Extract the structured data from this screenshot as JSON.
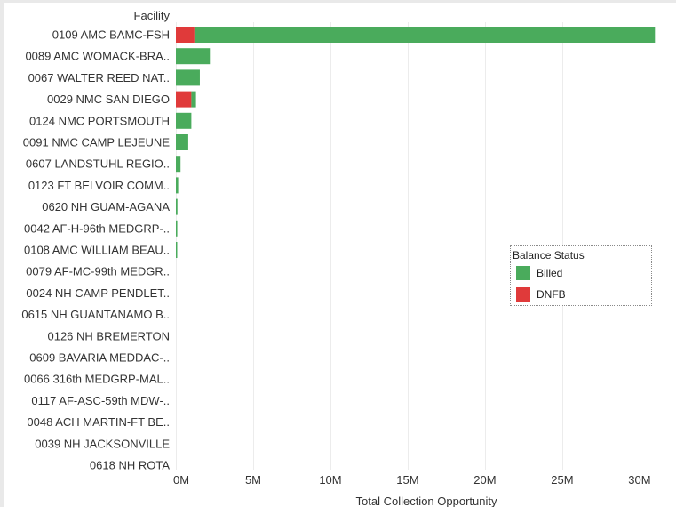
{
  "chart_data": {
    "type": "bar",
    "orientation": "horizontal",
    "stacked": true,
    "row_header": "Facility",
    "xlabel": "Total Collection Opportunity",
    "xlim": [
      0,
      31500000
    ],
    "x_ticks": [
      {
        "value": 0,
        "label": "0M"
      },
      {
        "value": 5000000,
        "label": "5M"
      },
      {
        "value": 10000000,
        "label": "10M"
      },
      {
        "value": 15000000,
        "label": "15M"
      },
      {
        "value": 20000000,
        "label": "20M"
      },
      {
        "value": 25000000,
        "label": "25M"
      },
      {
        "value": 30000000,
        "label": "30M"
      }
    ],
    "grid": true,
    "legend_position": "right",
    "categories": [
      "0109 AMC BAMC-FSH",
      "0089 AMC WOMACK-BRA..",
      "0067 WALTER REED NAT..",
      "0029 NMC SAN DIEGO",
      "0124 NMC PORTSMOUTH",
      "0091 NMC CAMP LEJEUNE",
      "0607 LANDSTUHL REGIO..",
      "0123 FT BELVOIR COMM..",
      "0620 NH GUAM-AGANA",
      "0042 AF-H-96th MEDGRP-..",
      "0108 AMC WILLIAM BEAU..",
      "0079 AF-MC-99th MEDGR..",
      "0024 NH CAMP PENDLET..",
      "0615 NH GUANTANAMO B..",
      "0126 NH BREMERTON",
      "0609 BAVARIA MEDDAC-..",
      "0066 316th MEDGRP-MAL..",
      "0117 AF-ASC-59th MDW-..",
      "0048 ACH MARTIN-FT BE..",
      "0039 NH JACKSONVILLE",
      "0618 NH ROTA"
    ],
    "series": [
      {
        "name": "DNFB",
        "color": "#e03a3a",
        "values": [
          1200000,
          0,
          0,
          1000000,
          0,
          0,
          0,
          0,
          0,
          0,
          0,
          0,
          0,
          0,
          0,
          0,
          0,
          0,
          0,
          0,
          0
        ]
      },
      {
        "name": "Billed",
        "color": "#4aab5c",
        "values": [
          29800000,
          2200000,
          1550000,
          300000,
          1000000,
          800000,
          300000,
          150000,
          100000,
          90000,
          80000,
          0,
          0,
          0,
          0,
          0,
          0,
          0,
          0,
          0,
          0
        ]
      }
    ],
    "legend": {
      "title": "Balance Status",
      "items": [
        {
          "label": "Billed",
          "color": "#4aab5c"
        },
        {
          "label": "DNFB",
          "color": "#e03a3a"
        }
      ]
    }
  }
}
